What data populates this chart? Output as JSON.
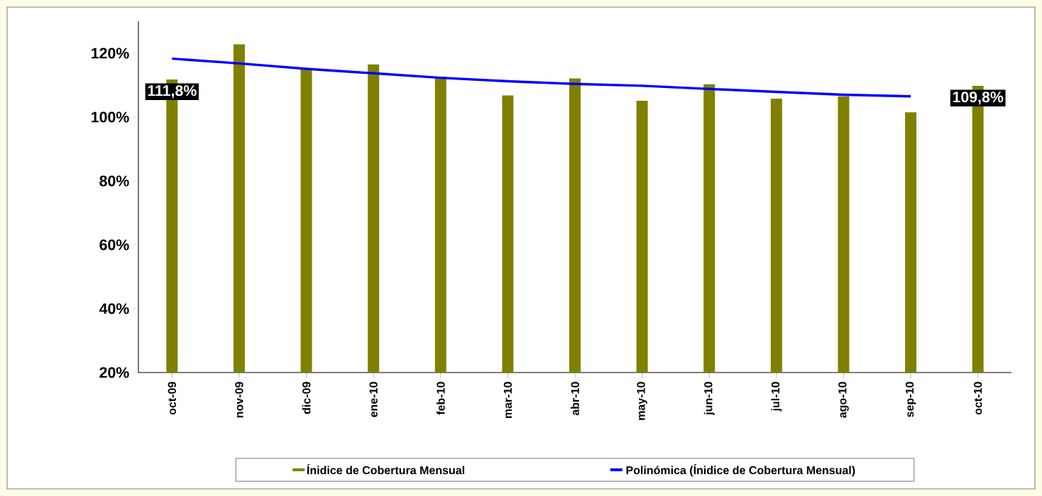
{
  "chart_data": {
    "type": "bar",
    "categories": [
      "oct-09",
      "nov-09",
      "dic-09",
      "ene-10",
      "feb-10",
      "mar-10",
      "abr-10",
      "may-10",
      "jun-10",
      "jul-10",
      "ago-10",
      "sep-10",
      "oct-10"
    ],
    "series": [
      {
        "name": "Ínidice de Cobertura Mensual",
        "color": "#808000",
        "values": [
          111.8,
          122.8,
          115.1,
          116.5,
          112.6,
          106.8,
          112.1,
          105.1,
          110.3,
          105.8,
          106.5,
          101.5,
          109.8
        ],
        "value_labels": [
          "111,8%",
          null,
          null,
          null,
          null,
          null,
          null,
          null,
          null,
          null,
          null,
          null,
          "109,8%"
        ]
      },
      {
        "name": "Polinómica (Ínidice de Cobertura Mensual)",
        "type": "line",
        "color": "#0000ff",
        "values": [
          118.3,
          116.8,
          115.1,
          113.7,
          112.3,
          111.2,
          110.4,
          109.8,
          108.8,
          107.9,
          107.0,
          106.5,
          null
        ]
      }
    ],
    "ylim": [
      20,
      130
    ],
    "yticks": [
      {
        "value": 20,
        "label": "20%"
      },
      {
        "value": 40,
        "label": "40%"
      },
      {
        "value": 60,
        "label": "60%"
      },
      {
        "value": 80,
        "label": "80%"
      },
      {
        "value": 100,
        "label": "100%"
      },
      {
        "value": 120,
        "label": "120%"
      }
    ],
    "legend": "bottom"
  }
}
